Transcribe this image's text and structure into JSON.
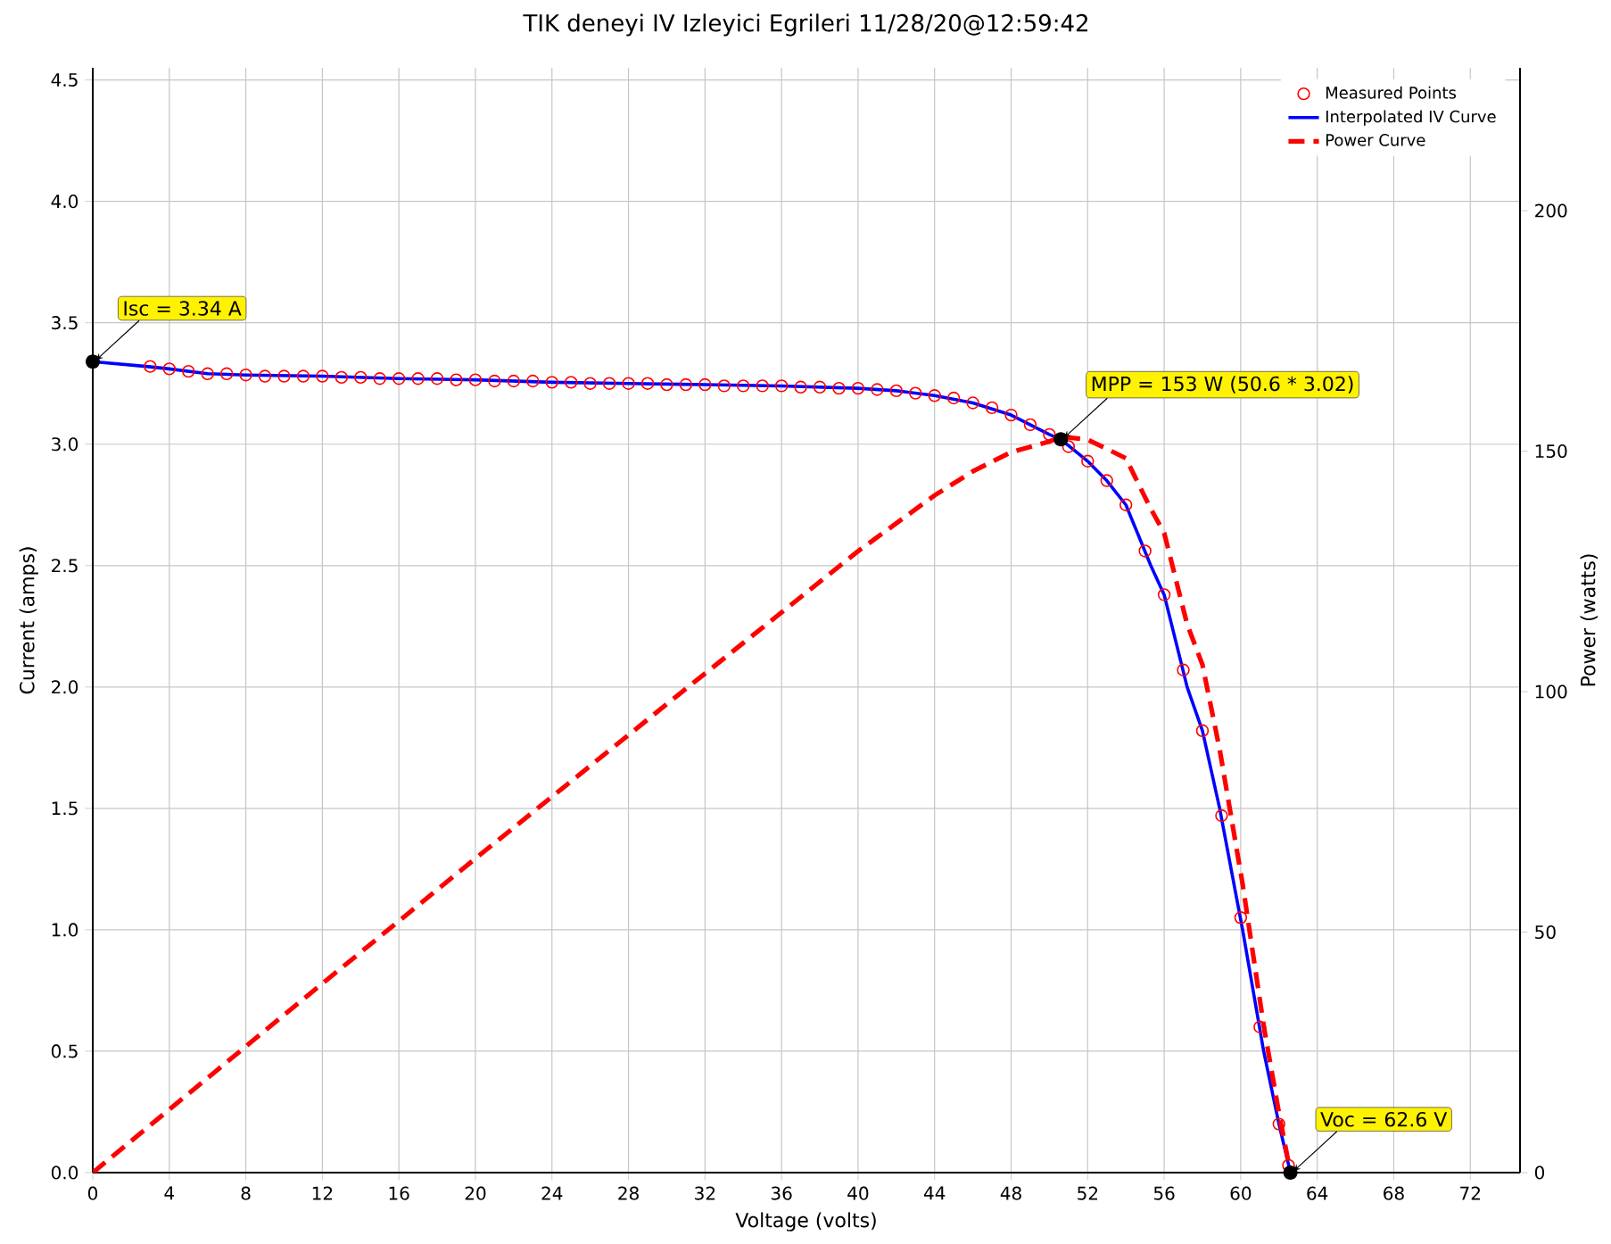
{
  "chart_data": {
    "type": "line",
    "title": "TIK deneyi IV Izleyici Egrileri 11/28/20@12:59:42",
    "xlabel": "Voltage (volts)",
    "ylabel": "Current (amps)",
    "y2label": "Power (watts)",
    "xlim": [
      0,
      74.6
    ],
    "xticks": [
      0,
      4,
      8,
      12,
      16,
      20,
      24,
      28,
      32,
      36,
      40,
      44,
      48,
      52,
      56,
      60,
      64,
      68,
      72
    ],
    "ylim": [
      0,
      4.55
    ],
    "yticks": [
      {
        "value": 0,
        "label": "0.0"
      },
      {
        "value": 0.5,
        "label": "0.5"
      },
      {
        "value": 1,
        "label": "1.0"
      },
      {
        "value": 1.5,
        "label": "1.5"
      },
      {
        "value": 2,
        "label": "2.0"
      },
      {
        "value": 2.5,
        "label": "2.5"
      },
      {
        "value": 3,
        "label": "3.0"
      },
      {
        "value": 3.5,
        "label": "3.5"
      },
      {
        "value": 4,
        "label": "4.0"
      },
      {
        "value": 4.5,
        "label": "4.5"
      }
    ],
    "y2lim": [
      0,
      229.7
    ],
    "y2ticks": [
      0,
      50,
      100,
      150,
      200
    ],
    "grid": true,
    "legend": "top right",
    "series": [
      {
        "name": "Measured Points",
        "type": "scatter",
        "marker": "circle",
        "color": "#ff0000",
        "x": [
          3,
          4,
          5,
          6,
          7,
          8,
          9,
          10,
          11,
          12,
          13,
          14,
          15,
          16,
          17,
          18,
          19,
          20,
          21,
          22,
          23,
          24,
          25,
          26,
          27,
          28,
          29,
          30,
          31,
          32,
          33,
          34,
          35,
          36,
          37,
          38,
          39,
          40,
          41,
          42,
          43,
          44,
          45,
          46,
          47,
          48,
          49,
          50,
          51,
          52,
          53,
          54,
          55,
          56,
          57,
          58,
          59,
          60,
          61,
          62,
          62.5
        ],
        "values": [
          3.32,
          3.31,
          3.3,
          3.29,
          3.29,
          3.285,
          3.28,
          3.28,
          3.28,
          3.28,
          3.275,
          3.275,
          3.27,
          3.27,
          3.27,
          3.27,
          3.265,
          3.265,
          3.26,
          3.26,
          3.26,
          3.255,
          3.255,
          3.25,
          3.25,
          3.25,
          3.25,
          3.245,
          3.245,
          3.245,
          3.24,
          3.24,
          3.24,
          3.24,
          3.235,
          3.235,
          3.23,
          3.23,
          3.225,
          3.22,
          3.21,
          3.2,
          3.19,
          3.17,
          3.15,
          3.12,
          3.08,
          3.04,
          2.99,
          2.93,
          2.85,
          2.75,
          2.56,
          2.38,
          2.07,
          1.82,
          1.47,
          1.05,
          0.6,
          0.2,
          0.03
        ]
      },
      {
        "name": "Interpolated IV Curve",
        "color": "#0000ff",
        "x": [
          0,
          2.8,
          4,
          6,
          8,
          12,
          16,
          20,
          24,
          28,
          32,
          36,
          40,
          42,
          44,
          46,
          48,
          49,
          50,
          50.6,
          52,
          53,
          54,
          55.3,
          56,
          57.2,
          58,
          58.9,
          60.1,
          61.2,
          62,
          62.6
        ],
        "values": [
          3.34,
          3.32,
          3.31,
          3.29,
          3.285,
          3.28,
          3.27,
          3.265,
          3.255,
          3.25,
          3.245,
          3.24,
          3.23,
          3.22,
          3.2,
          3.17,
          3.12,
          3.08,
          3.04,
          3.02,
          2.93,
          2.85,
          2.75,
          2.5,
          2.38,
          2.0,
          1.82,
          1.5,
          1.0,
          0.5,
          0.2,
          0
        ]
      },
      {
        "name": "Power Curve",
        "line_style": "dashed",
        "axis": "y2",
        "color": "#ff0000",
        "x": [
          0,
          10,
          20,
          30,
          40,
          44,
          46,
          48,
          50,
          50.6,
          52,
          53,
          54,
          55.3,
          56,
          57.2,
          58,
          58.9,
          60.1,
          61.2,
          62,
          62.6
        ],
        "values": [
          0,
          32.8,
          65.3,
          97.4,
          129.2,
          140.8,
          145.8,
          149.8,
          152,
          153,
          152.4,
          150.5,
          148.5,
          138,
          133,
          114,
          105.6,
          88,
          60,
          30.6,
          12.4,
          0
        ]
      }
    ],
    "annotations": [
      {
        "text": "Isc = 3.34 A",
        "x": 0,
        "y": 3.34
      },
      {
        "text": "MPP = 153 W (50.6 * 3.02)",
        "x": 50.6,
        "y": 3.02
      },
      {
        "text": "Voc = 62.6 V",
        "x": 62.6,
        "y": 0
      }
    ]
  }
}
